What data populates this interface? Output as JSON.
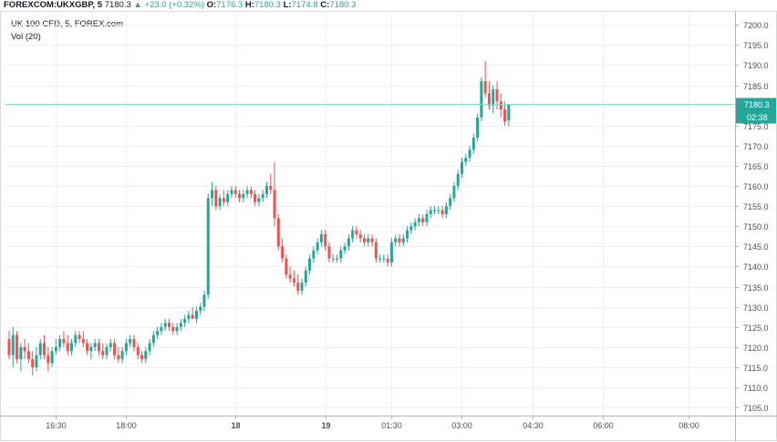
{
  "header": {
    "symbol": "FOREXCOM:UKXGBP, 5",
    "last": "7180.3",
    "arrow": "▲",
    "change": "+23.0 (+0.32%)",
    "o_label": "O:",
    "o_val": "7176.3",
    "h_label": "H:",
    "h_val": "7180.3",
    "l_label": "L:",
    "l_val": "7174.8",
    "c_label": "C:",
    "c_val": "7180.3"
  },
  "subheader": {
    "instrument": "UK 100 CFD, 5, FOREX.com",
    "volume": "Vol (20)"
  },
  "price_axis": {
    "last_price_label": "7180.3",
    "countdown_label": "02:38"
  },
  "colors": {
    "up": "#26a69a",
    "down": "#ef5350",
    "grid": "#eef0f3",
    "axis_text": "#4a4f5c",
    "last_price_line": "#8fd0cb"
  },
  "chart_data": {
    "type": "candlestick",
    "title": "",
    "ylim": [
      7103,
      7203
    ],
    "y_ticks": [
      7105,
      7110,
      7115,
      7120,
      7125,
      7130,
      7135,
      7140,
      7145,
      7150,
      7155,
      7160,
      7165,
      7170,
      7175,
      7180,
      7185,
      7190,
      7195,
      7200
    ],
    "y_tick_labels": [
      "7105.0",
      "7110.0",
      "7115.0",
      "7120.0",
      "7125.0",
      "7130.0",
      "7135.0",
      "7140.0",
      "7145.0",
      "7150.0",
      "7155.0",
      "7160.0",
      "7165.0",
      "7170.0",
      "7175.0",
      "7180.0",
      "7185.0",
      "7190.0",
      "7195.0",
      "7200.0"
    ],
    "x_tick_labels": [
      "16:30",
      "18:00",
      "18",
      "19",
      "01:30",
      "03:00",
      "04:30",
      "06:00",
      "08:00"
    ],
    "x_tick_bold": [
      false,
      false,
      true,
      true,
      false,
      false,
      false,
      false,
      false
    ],
    "x_tick_candle_index": [
      12,
      30,
      58,
      81,
      98,
      116,
      134,
      152,
      174
    ],
    "last_price": 7180.3,
    "grid": true,
    "candles": [
      [
        7122,
        7124,
        7117,
        7118
      ],
      [
        7118,
        7125,
        7115,
        7123
      ],
      [
        7123,
        7124,
        7116,
        7117
      ],
      [
        7117,
        7121,
        7114,
        7120
      ],
      [
        7120,
        7122,
        7117,
        7119
      ],
      [
        7119,
        7121,
        7116,
        7117
      ],
      [
        7117,
        7119,
        7113,
        7115
      ],
      [
        7115,
        7120,
        7114,
        7118
      ],
      [
        7118,
        7122,
        7117,
        7121
      ],
      [
        7121,
        7123,
        7117,
        7118
      ],
      [
        7118,
        7120,
        7114,
        7116
      ],
      [
        7116,
        7120,
        7115,
        7119
      ],
      [
        7119,
        7122,
        7118,
        7120
      ],
      [
        7120,
        7123,
        7119,
        7122
      ],
      [
        7122,
        7124,
        7120,
        7121
      ],
      [
        7121,
        7123,
        7118,
        7119
      ],
      [
        7119,
        7122,
        7118,
        7121
      ],
      [
        7121,
        7124,
        7120,
        7123
      ],
      [
        7123,
        7124,
        7121,
        7122
      ],
      [
        7122,
        7124,
        7120,
        7121
      ],
      [
        7121,
        7122,
        7118,
        7119
      ],
      [
        7119,
        7121,
        7117,
        7120
      ],
      [
        7120,
        7122,
        7119,
        7121
      ],
      [
        7121,
        7122,
        7118,
        7119
      ],
      [
        7119,
        7121,
        7117,
        7118
      ],
      [
        7118,
        7121,
        7117,
        7120
      ],
      [
        7120,
        7122,
        7119,
        7121
      ],
      [
        7121,
        7122,
        7117,
        7118
      ],
      [
        7118,
        7120,
        7116,
        7117
      ],
      [
        7117,
        7120,
        7116,
        7119
      ],
      [
        7119,
        7122,
        7118,
        7121
      ],
      [
        7121,
        7123,
        7120,
        7122
      ],
      [
        7122,
        7123,
        7119,
        7120
      ],
      [
        7120,
        7121,
        7117,
        7118
      ],
      [
        7118,
        7119,
        7116,
        7117
      ],
      [
        7117,
        7120,
        7116,
        7119
      ],
      [
        7119,
        7122,
        7118,
        7121
      ],
      [
        7121,
        7124,
        7120,
        7123
      ],
      [
        7123,
        7125,
        7122,
        7124
      ],
      [
        7124,
        7126,
        7123,
        7125
      ],
      [
        7125,
        7127,
        7124,
        7126
      ],
      [
        7126,
        7127,
        7124,
        7125
      ],
      [
        7125,
        7126,
        7123,
        7124
      ],
      [
        7124,
        7126,
        7123,
        7125
      ],
      [
        7125,
        7127,
        7124,
        7126
      ],
      [
        7126,
        7128,
        7125,
        7127
      ],
      [
        7127,
        7129,
        7126,
        7128
      ],
      [
        7128,
        7130,
        7127,
        7127
      ],
      [
        7127,
        7130,
        7126,
        7129
      ],
      [
        7129,
        7131,
        7128,
        7130
      ],
      [
        7130,
        7134,
        7129,
        7133
      ],
      [
        7133,
        7158,
        7132,
        7157
      ],
      [
        7157,
        7161,
        7155,
        7159
      ],
      [
        7159,
        7160,
        7154,
        7155
      ],
      [
        7155,
        7158,
        7154,
        7157
      ],
      [
        7157,
        7159,
        7155,
        7156
      ],
      [
        7156,
        7159,
        7155,
        7158
      ],
      [
        7158,
        7160,
        7157,
        7159
      ],
      [
        7159,
        7160,
        7157,
        7158
      ],
      [
        7158,
        7159,
        7156,
        7157
      ],
      [
        7157,
        7159,
        7156,
        7158
      ],
      [
        7158,
        7160,
        7157,
        7159
      ],
      [
        7159,
        7160,
        7157,
        7158
      ],
      [
        7158,
        7159,
        7155,
        7156
      ],
      [
        7156,
        7158,
        7155,
        7157
      ],
      [
        7157,
        7159,
        7156,
        7158
      ],
      [
        7158,
        7161,
        7157,
        7160
      ],
      [
        7160,
        7163,
        7158,
        7159
      ],
      [
        7159,
        7166,
        7150,
        7152
      ],
      [
        7152,
        7153,
        7144,
        7145
      ],
      [
        7145,
        7147,
        7141,
        7142
      ],
      [
        7142,
        7143,
        7137,
        7138
      ],
      [
        7138,
        7140,
        7136,
        7137
      ],
      [
        7137,
        7139,
        7135,
        7136
      ],
      [
        7136,
        7138,
        7133,
        7134
      ],
      [
        7134,
        7137,
        7133,
        7136
      ],
      [
        7136,
        7140,
        7135,
        7139
      ],
      [
        7139,
        7143,
        7138,
        7142
      ],
      [
        7142,
        7145,
        7141,
        7144
      ],
      [
        7144,
        7147,
        7143,
        7146
      ],
      [
        7146,
        7149,
        7145,
        7148
      ],
      [
        7148,
        7149,
        7144,
        7145
      ],
      [
        7145,
        7146,
        7141,
        7142
      ],
      [
        7142,
        7143,
        7141,
        7142
      ],
      [
        7142,
        7143,
        7141,
        7142
      ],
      [
        7142,
        7145,
        7141,
        7144
      ],
      [
        7144,
        7146,
        7143,
        7145
      ],
      [
        7145,
        7148,
        7144,
        7147
      ],
      [
        7147,
        7150,
        7146,
        7149
      ],
      [
        7149,
        7150,
        7147,
        7148
      ],
      [
        7148,
        7149,
        7146,
        7147
      ],
      [
        7147,
        7148,
        7145,
        7146
      ],
      [
        7146,
        7148,
        7145,
        7147
      ],
      [
        7147,
        7148,
        7145,
        7146
      ],
      [
        7146,
        7147,
        7141,
        7142
      ],
      [
        7142,
        7143,
        7141,
        7142
      ],
      [
        7142,
        7143,
        7141,
        7142
      ],
      [
        7142,
        7143,
        7140,
        7141
      ],
      [
        7141,
        7147,
        7140,
        7146
      ],
      [
        7146,
        7148,
        7145,
        7147
      ],
      [
        7147,
        7148,
        7145,
        7146
      ],
      [
        7146,
        7148,
        7145,
        7147
      ],
      [
        7147,
        7150,
        7146,
        7149
      ],
      [
        7149,
        7151,
        7148,
        7150
      ],
      [
        7150,
        7152,
        7149,
        7151
      ],
      [
        7151,
        7153,
        7150,
        7152
      ],
      [
        7152,
        7153,
        7150,
        7151
      ],
      [
        7151,
        7154,
        7150,
        7153
      ],
      [
        7153,
        7155,
        7152,
        7154
      ],
      [
        7154,
        7155,
        7153,
        7154
      ],
      [
        7154,
        7155,
        7153,
        7154
      ],
      [
        7154,
        7155,
        7152,
        7153
      ],
      [
        7153,
        7156,
        7152,
        7155
      ],
      [
        7155,
        7158,
        7154,
        7157
      ],
      [
        7157,
        7161,
        7156,
        7160
      ],
      [
        7160,
        7164,
        7159,
        7163
      ],
      [
        7163,
        7167,
        7162,
        7166
      ],
      [
        7166,
        7168,
        7165,
        7167
      ],
      [
        7167,
        7170,
        7166,
        7169
      ],
      [
        7169,
        7173,
        7168,
        7172
      ],
      [
        7172,
        7178,
        7171,
        7177
      ],
      [
        7177,
        7187,
        7176,
        7186
      ],
      [
        7186,
        7191,
        7182,
        7183
      ],
      [
        7183,
        7186,
        7179,
        7180
      ],
      [
        7180,
        7185,
        7178,
        7184
      ],
      [
        7184,
        7186,
        7179,
        7181
      ],
      [
        7181,
        7183,
        7177,
        7179
      ],
      [
        7179,
        7181,
        7175,
        7176
      ],
      [
        7176.3,
        7180.3,
        7174.8,
        7180.3
      ]
    ]
  }
}
